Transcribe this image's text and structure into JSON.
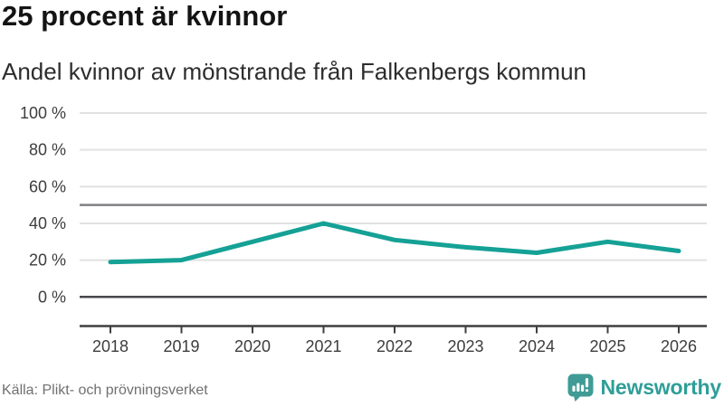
{
  "header": {
    "title": "25 procent är kvinnor",
    "subtitle": "Andel kvinnor av mönstrande från Falkenbergs kommun"
  },
  "chart_data": {
    "type": "line",
    "title": "25 procent är kvinnor",
    "subtitle": "Andel kvinnor av mönstrande från Falkenbergs kommun",
    "x": [
      2018,
      2019,
      2020,
      2021,
      2022,
      2023,
      2024,
      2025,
      2026
    ],
    "values": [
      19,
      20,
      30,
      40,
      31,
      27,
      24,
      30,
      25
    ],
    "unit": "%",
    "xlabel": "",
    "ylabel": "",
    "ylim": [
      0,
      100
    ],
    "yticks": [
      100,
      80,
      60,
      40,
      20,
      0
    ],
    "ytick_labels": [
      "100 %",
      "80 %",
      "60 %",
      "40 %",
      "20 %",
      "0 %"
    ],
    "reference_line_y": 50,
    "grid": true,
    "legend": "none"
  },
  "footer": {
    "source": "Källa: Plikt- och prövningsverket",
    "brand": "Newsworthy"
  },
  "colors": {
    "line": "#15a195",
    "grid_light": "#e2e2e2",
    "grid_zero": "#47474b",
    "reference_line": "#7f7f85",
    "axis": "#3f3f3f",
    "title_text": "#141414",
    "subtitle_text": "#2d2d2d",
    "axis_text": "#3d3d3d",
    "source_text": "#707070",
    "brand_teal": "#2f9e98",
    "logo_fill": "#3f9b95"
  }
}
